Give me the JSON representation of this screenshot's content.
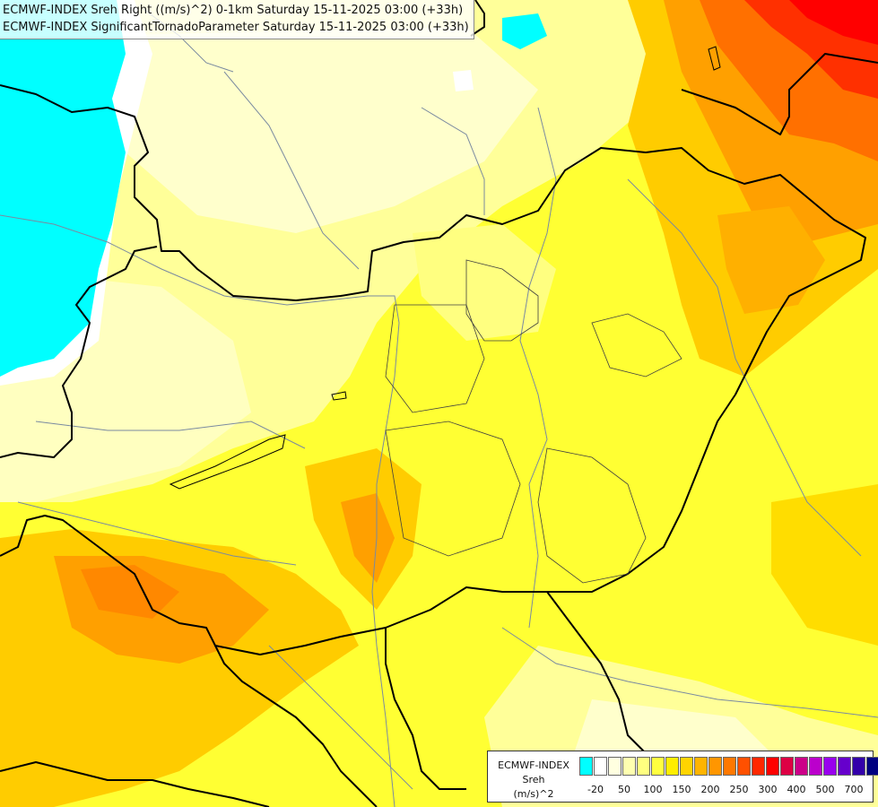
{
  "title": {
    "line1": "ECMWF-INDEX Sreh Right ((m/s)^2) 0-1km Saturday 15-11-2025 03:00 (+33h)",
    "line2": "ECMWF-INDEX SignificantTornadoParameter Saturday 15-11-2025 03:00 (+33h)"
  },
  "legend": {
    "source": "ECMWF-INDEX",
    "variable": "Sreh",
    "unit": "(m/s)^2",
    "colors": [
      "#00ffff",
      "#ffffff",
      "#ffffe0",
      "#ffffb0",
      "#ffff80",
      "#ffff40",
      "#ffee00",
      "#ffd400",
      "#ffb400",
      "#ff9600",
      "#ff7800",
      "#ff5000",
      "#ff2800",
      "#ff0000",
      "#dd0044",
      "#cc0088",
      "#bb00cc",
      "#9900ee",
      "#6600cc",
      "#3300aa",
      "#000080"
    ],
    "ticks": [
      "-20",
      "50",
      "100",
      "150",
      "200",
      "250",
      "300",
      "400",
      "500",
      "700"
    ]
  },
  "colors": {
    "cyan": "#00ffff",
    "pale": "#ffffc8",
    "yellow": "#ffff40",
    "gold": "#ffd400",
    "orange": "#ff9600",
    "red": "#ff2000",
    "border": "#000000",
    "river": "#7a8aa0"
  }
}
